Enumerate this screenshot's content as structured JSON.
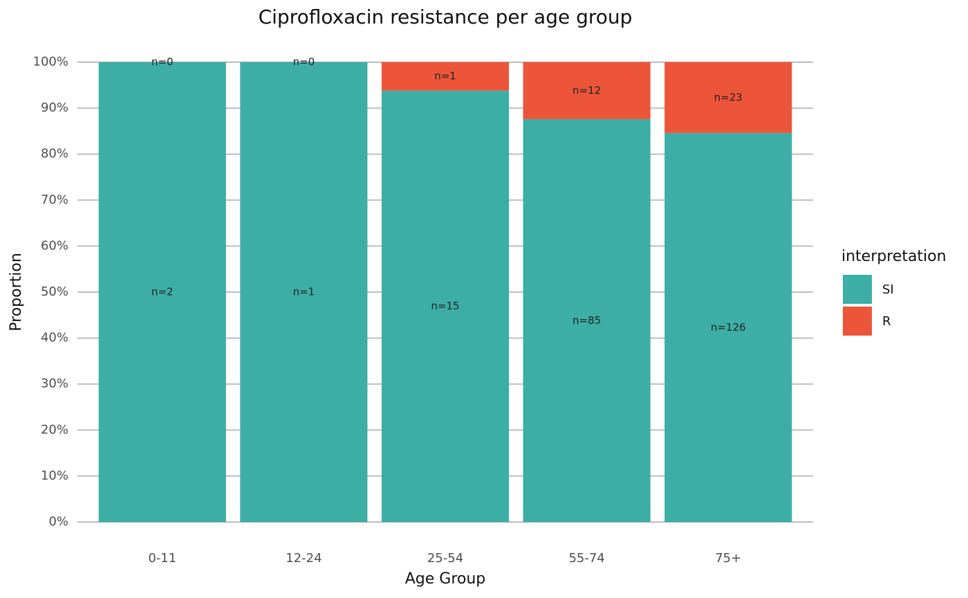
{
  "chart_data": {
    "type": "stacked_bar",
    "title": "Ciprofloxacin resistance per age group",
    "x_label": "Age Group",
    "y_label": "Proportion",
    "legend_title": "interpretation",
    "legend_position": "right",
    "categories": [
      "0-11",
      "12-24",
      "25-54",
      "55-74",
      "75+"
    ],
    "series": [
      {
        "name": "SI",
        "color": "#3daea5",
        "values": [
          100,
          100,
          93.8,
          87.6,
          84.6
        ],
        "count_labels": [
          "n=2",
          "n=1",
          "n=15",
          "n=85",
          "n=126"
        ]
      },
      {
        "name": "R",
        "color": "#ec553a",
        "values": [
          0,
          0,
          6.2,
          12.4,
          15.4
        ],
        "count_labels": [
          "n=0",
          "n=0",
          "n=1",
          "n=12",
          "n=23"
        ]
      }
    ],
    "ylim": [
      0,
      100
    ],
    "yticks": [
      {
        "value": 0,
        "label": "0%"
      },
      {
        "value": 10,
        "label": "10%"
      },
      {
        "value": 20,
        "label": "20%"
      },
      {
        "value": 30,
        "label": "30%"
      },
      {
        "value": 40,
        "label": "40%"
      },
      {
        "value": 50,
        "label": "50%"
      },
      {
        "value": 60,
        "label": "60%"
      },
      {
        "value": 70,
        "label": "70%"
      },
      {
        "value": 80,
        "label": "80%"
      },
      {
        "value": 90,
        "label": "90%"
      },
      {
        "value": 100,
        "label": "100%"
      }
    ],
    "grid": true
  }
}
